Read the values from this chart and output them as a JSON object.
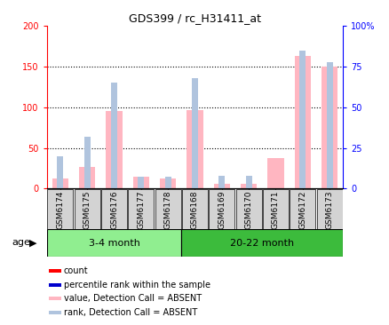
{
  "title": "GDS399 / rc_H31411_at",
  "samples": [
    "GSM6174",
    "GSM6175",
    "GSM6176",
    "GSM6177",
    "GSM6178",
    "GSM6168",
    "GSM6169",
    "GSM6170",
    "GSM6171",
    "GSM6172",
    "GSM6173"
  ],
  "absent_value": [
    12,
    26,
    95,
    15,
    12,
    97,
    6,
    6,
    38,
    163,
    150
  ],
  "absent_rank": [
    20,
    32,
    65,
    7,
    7,
    68,
    8,
    8,
    0,
    85,
    78
  ],
  "group1_count": 5,
  "group2_count": 6,
  "group1_label": "3-4 month",
  "group2_label": "20-22 month",
  "age_label": "age",
  "ylim_left": [
    0,
    200
  ],
  "ylim_right": [
    0,
    100
  ],
  "yticks_left": [
    0,
    50,
    100,
    150,
    200
  ],
  "yticks_right": [
    0,
    25,
    50,
    75,
    100
  ],
  "ytick_labels_left": [
    "0",
    "50",
    "100",
    "150",
    "200"
  ],
  "ytick_labels_right": [
    "0",
    "25",
    "50",
    "75",
    "100%"
  ],
  "color_absent_value": "#FFB6C1",
  "color_absent_rank": "#B0C4DE",
  "color_present_value": "#FF0000",
  "color_present_rank": "#0000CD",
  "color_group1_bg": "#90EE90",
  "color_group2_bg": "#3CBB3C",
  "color_tick_bg": "#D3D3D3",
  "bar_width": 0.6,
  "dotted_lines": [
    50,
    100,
    150
  ],
  "legend_entries": [
    {
      "label": "count",
      "color": "#FF0000"
    },
    {
      "label": "percentile rank within the sample",
      "color": "#0000CD"
    },
    {
      "label": "value, Detection Call = ABSENT",
      "color": "#FFB6C1"
    },
    {
      "label": "rank, Detection Call = ABSENT",
      "color": "#B0C4DE"
    }
  ]
}
